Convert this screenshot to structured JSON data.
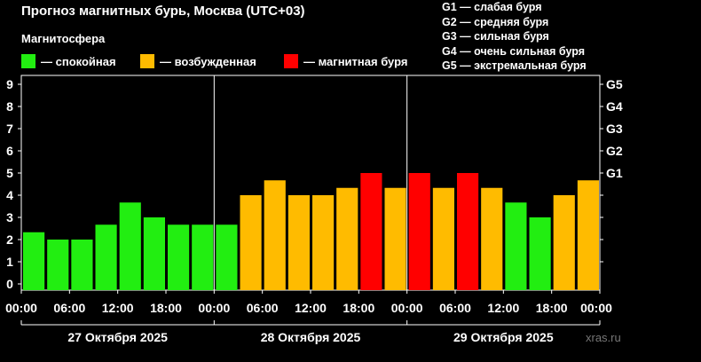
{
  "title": "Прогноз магнитных бурь, Москва (UTC+03)",
  "subtitle": "Магнитосфера",
  "legend": [
    {
      "label": "— спокойная",
      "color": "#22ee11"
    },
    {
      "label": "— возбужденная",
      "color": "#ffbb00"
    },
    {
      "label": "— магнитная буря",
      "color": "#ff0000"
    }
  ],
  "g_levels": [
    {
      "label": "G1 — слабая буря"
    },
    {
      "label": "G2 — средняя буря"
    },
    {
      "label": "G3 — сильная буря"
    },
    {
      "label": "G4 — очень сильная буря"
    },
    {
      "label": "G5 — экстремальная буря"
    }
  ],
  "watermark": "xras.ru",
  "chart_data": {
    "type": "bar",
    "ylim": [
      0,
      9
    ],
    "y_ticks": [
      "0",
      "1",
      "2",
      "3",
      "4",
      "5",
      "6",
      "7",
      "8",
      "9"
    ],
    "right_ticks": [
      {
        "value": 5,
        "label": "G1"
      },
      {
        "value": 6,
        "label": "G2"
      },
      {
        "value": 7,
        "label": "G3"
      },
      {
        "value": 8,
        "label": "G4"
      },
      {
        "value": 9,
        "label": "G5"
      }
    ],
    "x_tick_labels": [
      "00:00",
      "06:00",
      "12:00",
      "18:00",
      "00:00",
      "06:00",
      "12:00",
      "18:00",
      "00:00",
      "06:00",
      "12:00",
      "18:00",
      "00:00"
    ],
    "days": [
      "27 Октября 2025",
      "28 Октября 2025",
      "29 Октября 2025"
    ],
    "values": [
      2.33,
      2.0,
      2.0,
      2.67,
      3.67,
      3.0,
      2.67,
      2.67,
      2.67,
      4.0,
      4.67,
      4.0,
      4.0,
      4.33,
      5.0,
      4.33,
      5.0,
      4.33,
      5.0,
      4.33,
      3.67,
      3.0,
      4.0,
      4.67
    ],
    "colors": {
      "quiet": "#22ee11",
      "active": "#ffbb00",
      "storm": "#ff0000"
    },
    "thresholds": {
      "active": 4,
      "storm": 5
    }
  }
}
